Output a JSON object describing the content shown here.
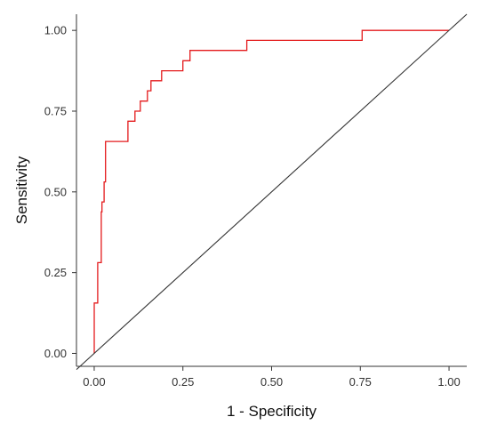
{
  "chart_data": {
    "type": "line",
    "title": "",
    "xlabel": "1 - Specificity",
    "ylabel": "Sensitivity",
    "xlim": [
      -0.05,
      1.05
    ],
    "ylim": [
      -0.04,
      1.05
    ],
    "x_ticks": [
      0,
      0.25,
      0.5,
      0.75,
      1
    ],
    "x_tick_labels": [
      "0.00",
      "0.25",
      "0.50",
      "0.75",
      "1.00"
    ],
    "y_ticks": [
      0,
      0.25,
      0.5,
      0.75,
      1
    ],
    "y_tick_labels": [
      "0.00",
      "0.25",
      "0.50",
      "0.75",
      "1.00"
    ],
    "grid": false,
    "series": [
      {
        "kind": "step",
        "color": "#e41a1c",
        "x": [
          0.0,
          0.0,
          0.01,
          0.01,
          0.02,
          0.02,
          0.022,
          0.022,
          0.028,
          0.028,
          0.032,
          0.032,
          0.095,
          0.095,
          0.115,
          0.115,
          0.13,
          0.13,
          0.15,
          0.15,
          0.16,
          0.16,
          0.17,
          0.17,
          0.19,
          0.19,
          0.25,
          0.25,
          0.27,
          0.27,
          0.43,
          0.43,
          0.755,
          0.755,
          1.0
        ],
        "y": [
          0.0,
          0.156,
          0.156,
          0.281,
          0.281,
          0.438,
          0.438,
          0.469,
          0.469,
          0.531,
          0.531,
          0.656,
          0.656,
          0.719,
          0.719,
          0.75,
          0.75,
          0.781,
          0.781,
          0.813,
          0.813,
          0.844,
          0.844,
          0.844,
          0.844,
          0.875,
          0.875,
          0.906,
          0.906,
          0.938,
          0.938,
          0.969,
          0.969,
          1.0,
          1.0
        ]
      },
      {
        "kind": "reference",
        "color": "#333333",
        "x": [
          -0.05,
          1.05
        ],
        "y": [
          -0.05,
          1.05
        ]
      }
    ],
    "colors": {
      "roc_curve": "#e41a1c",
      "diagonal": "#333333",
      "axis": "#333333"
    }
  }
}
